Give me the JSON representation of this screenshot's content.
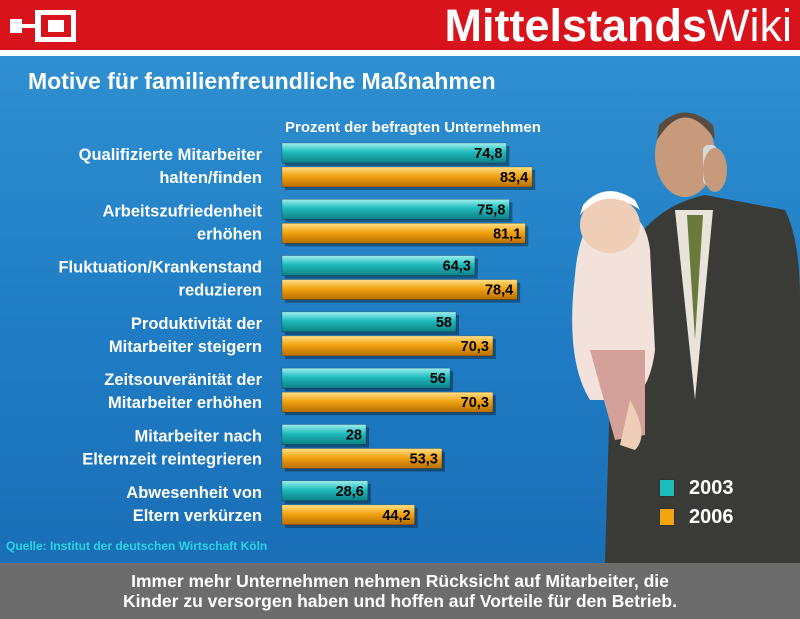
{
  "header": {
    "brand_bold": "Mittelstands",
    "brand_light": "Wiki"
  },
  "colors": {
    "header_red": "#d9131c",
    "panel_blue": "#1f7cc4",
    "series_2003": "#1fbcbc",
    "series_2006": "#f2a413",
    "footer_gray": "#6c6c6c",
    "source_cyan": "#2ad4e6"
  },
  "chart_data": {
    "type": "bar",
    "orientation": "horizontal",
    "title": "Motive für familienfreundliche Maßnahmen",
    "subtitle": "Prozent der befragten Unternehmen",
    "categories": [
      [
        "Qualifizierte Mitarbeiter",
        "halten/finden"
      ],
      [
        "Arbeitszufriedenheit",
        "erhöhen"
      ],
      [
        "Fluktuation/Krankenstand",
        "reduzieren"
      ],
      [
        "Produktivität der",
        "Mitarbeiter steigern"
      ],
      [
        "Zeitsouveränität der",
        "Mitarbeiter erhöhen"
      ],
      [
        "Mitarbeiter nach",
        "Elternzeit reintegrieren"
      ],
      [
        "Abwesenheit von",
        "Eltern verkürzen"
      ]
    ],
    "series": [
      {
        "name": "2003",
        "values": [
          74.8,
          75.8,
          64.3,
          58,
          56,
          28,
          28.6
        ],
        "labels": [
          "74,8",
          "75,8",
          "64,3",
          "58",
          "56",
          "28",
          "28,6"
        ]
      },
      {
        "name": "2006",
        "values": [
          83.4,
          81.1,
          78.4,
          70.3,
          70.3,
          53.3,
          44.2
        ],
        "labels": [
          "83,4",
          "81,1",
          "78,4",
          "70,3",
          "70,3",
          "53,3",
          "44,2"
        ]
      }
    ],
    "legend_position": "bottom-right",
    "source": "Quelle: Institut der deutschen Wirtschaft Köln"
  },
  "footer": {
    "line1": "Immer mehr Unternehmen nehmen Rücksicht auf Mitarbeiter, die",
    "line2": "Kinder zu versorgen haben und hoffen auf Vorteile für den Betrieb."
  }
}
